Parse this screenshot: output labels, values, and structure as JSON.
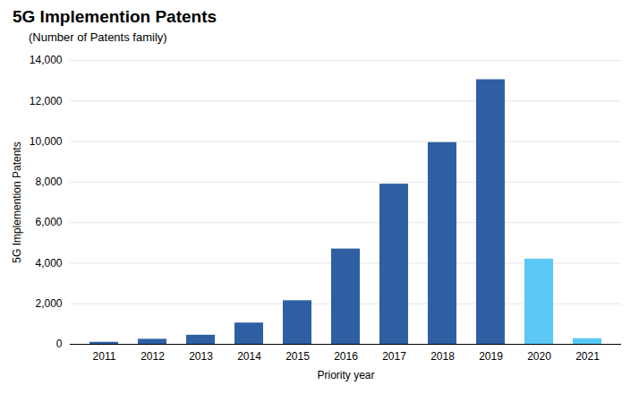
{
  "chart_data": {
    "type": "bar",
    "title": "5G Implemention Patents",
    "subtitle": "(Number of Patents family)",
    "xlabel": "Priority year",
    "ylabel": "5G Implemention Patents",
    "categories": [
      "2011",
      "2012",
      "2013",
      "2014",
      "2015",
      "2016",
      "2017",
      "2018",
      "2019",
      "2020",
      "2021"
    ],
    "values": [
      100,
      250,
      450,
      1050,
      2150,
      4700,
      7900,
      9950,
      13050,
      4200,
      280
    ],
    "colors": [
      "#2E5FA3",
      "#2E5FA3",
      "#2E5FA3",
      "#2E5FA3",
      "#2E5FA3",
      "#2E5FA3",
      "#2E5FA3",
      "#2E5FA3",
      "#2E5FA3",
      "#5BC8F5",
      "#5BC8F5"
    ],
    "ylim": [
      0,
      14000
    ],
    "yticks": [
      0,
      {
        "value": 2000,
        "label": "2,000"
      },
      {
        "value": 4000,
        "label": "4,000"
      },
      {
        "value": 6000,
        "label": "6,000"
      },
      {
        "value": 8000,
        "label": "8,000"
      },
      {
        "value": 10000,
        "label": "10,000"
      },
      {
        "value": 12000,
        "label": "12,000"
      },
      {
        "value": 14000,
        "label": "14,000"
      }
    ],
    "grid": true
  }
}
